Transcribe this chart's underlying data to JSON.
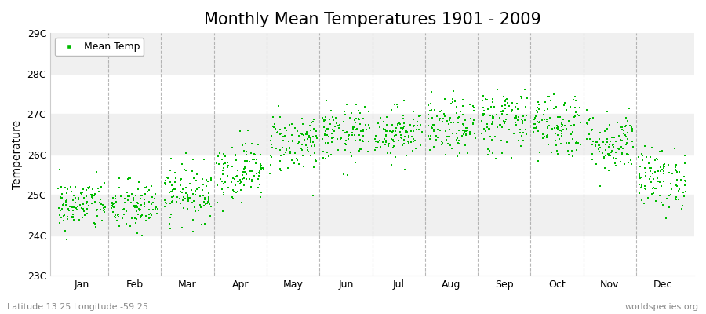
{
  "title": "Monthly Mean Temperatures 1901 - 2009",
  "ylabel": "Temperature",
  "xlabel": "",
  "ylim": [
    23,
    29
  ],
  "ytick_labels": [
    "23C",
    "24C",
    "25C",
    "26C",
    "27C",
    "28C",
    "29C"
  ],
  "ytick_values": [
    23,
    24,
    25,
    26,
    27,
    28,
    29
  ],
  "months": [
    "Jan",
    "Feb",
    "Mar",
    "Apr",
    "May",
    "Jun",
    "Jul",
    "Aug",
    "Sep",
    "Oct",
    "Nov",
    "Dec"
  ],
  "month_means": [
    24.75,
    24.7,
    25.05,
    25.6,
    26.3,
    26.5,
    26.55,
    26.65,
    26.85,
    26.75,
    26.3,
    25.4
  ],
  "month_stds": [
    0.32,
    0.33,
    0.35,
    0.38,
    0.38,
    0.35,
    0.32,
    0.35,
    0.42,
    0.42,
    0.38,
    0.38
  ],
  "n_years": 109,
  "random_seed": 42,
  "dot_color": "#00bb00",
  "dot_size": 2.5,
  "marker": "s",
  "legend_label": "Mean Temp",
  "bg_color": "#ffffff",
  "plot_bg_color": "#ffffff",
  "stripe_color_light": "#f0f0f0",
  "stripe_color_dark": "#e0e0e0",
  "grid_color": "#999999",
  "title_fontsize": 15,
  "label_fontsize": 10,
  "tick_fontsize": 9,
  "footer_left": "Latitude 13.25 Longitude -59.25",
  "footer_right": "worldspecies.org",
  "footer_fontsize": 8
}
